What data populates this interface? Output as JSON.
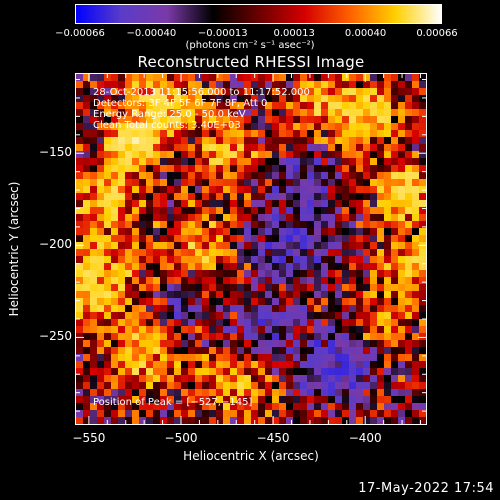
{
  "chart_data": {
    "type": "heatmap",
    "title": "Reconstructed RHESSI Image",
    "xlabel": "Heliocentric X (arcsec)",
    "ylabel": "Heliocentric Y (arcsec)",
    "xlim": [
      -557,
      -367
    ],
    "ylim": [
      -297,
      -107
    ],
    "xticks": [
      {
        "value": -550,
        "label": "−550"
      },
      {
        "value": -500,
        "label": "−500"
      },
      {
        "value": -450,
        "label": "−450"
      },
      {
        "value": -400,
        "label": "−400"
      }
    ],
    "yticks": [
      {
        "value": -150,
        "label": "−150"
      },
      {
        "value": -200,
        "label": "−200"
      },
      {
        "value": -250,
        "label": "−250"
      }
    ],
    "colorbar": {
      "min": -0.00066,
      "max": 0.00066,
      "ticks": [
        "−0.00066",
        "−0.00040",
        "−0.00013",
        "0.00013",
        "0.00040",
        "0.00066"
      ],
      "units": "(photons cm⁻² s⁻¹ asec⁻²)",
      "colors": [
        "#0000ff",
        "#5a3cc8",
        "#7a3aa8",
        "#000000",
        "#6a0000",
        "#d40000",
        "#ff6000",
        "#ffd000",
        "#ffffff"
      ]
    },
    "annotations": [
      "28-Oct-2013 11:15:56.000 to 11:17:52.000",
      "Detectors: 3F 4F 5F 6F 7F 8F, Att 0",
      "Energy Range: 25.0 - 50.0 keV",
      "Clean      Total counts: 3.40E+03"
    ],
    "peak_label": "Position of Peak = [−527,−145]",
    "peak": {
      "x": -527,
      "y": -145
    },
    "sources": [
      {
        "x": -527,
        "y": -145,
        "amp": 1.0,
        "sigma": 9
      },
      {
        "x": -540,
        "y": -175,
        "amp": 0.75,
        "sigma": 12
      },
      {
        "x": -510,
        "y": -125,
        "amp": 0.7,
        "sigma": 13
      },
      {
        "x": -545,
        "y": -220,
        "amp": 0.7,
        "sigma": 14
      },
      {
        "x": -520,
        "y": -260,
        "amp": 0.55,
        "sigma": 14
      },
      {
        "x": -490,
        "y": -200,
        "amp": 0.55,
        "sigma": 12
      },
      {
        "x": -475,
        "y": -150,
        "amp": 0.5,
        "sigma": 11
      },
      {
        "x": -470,
        "y": -275,
        "amp": 0.5,
        "sigma": 12
      },
      {
        "x": -400,
        "y": -130,
        "amp": 0.65,
        "sigma": 13
      },
      {
        "x": -378,
        "y": -170,
        "amp": 0.75,
        "sigma": 11
      },
      {
        "x": -375,
        "y": -210,
        "amp": 0.6,
        "sigma": 12
      },
      {
        "x": -390,
        "y": -245,
        "amp": 0.45,
        "sigma": 10
      },
      {
        "x": -425,
        "y": -125,
        "amp": 0.5,
        "sigma": 10
      },
      {
        "x": -440,
        "y": -200,
        "amp": -0.55,
        "sigma": 14
      },
      {
        "x": -430,
        "y": -165,
        "amp": -0.45,
        "sigma": 12
      },
      {
        "x": -415,
        "y": -265,
        "amp": -0.6,
        "sigma": 15
      },
      {
        "x": -455,
        "y": -245,
        "amp": -0.4,
        "sigma": 12
      },
      {
        "x": -500,
        "y": -235,
        "amp": -0.3,
        "sigma": 10
      }
    ]
  },
  "footer": {
    "date": "17-May-2022 17:54"
  }
}
